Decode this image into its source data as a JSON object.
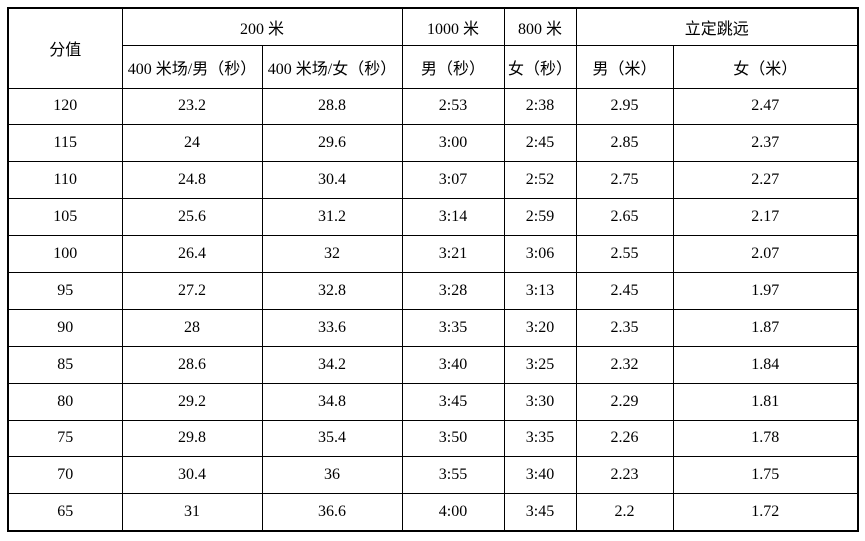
{
  "table": {
    "header": {
      "score": "分值",
      "event_200m": "200 米",
      "event_1000m": "1000 米",
      "event_800m": "800 米",
      "event_jump": "立定跳远",
      "sub_200m_male": "400 米场/男（秒）",
      "sub_200m_female": "400 米场/女（秒）",
      "sub_1000m_male": "男（秒）",
      "sub_800m_female": "女（秒）",
      "sub_jump_male": "男（米）",
      "sub_jump_female": "女（米）"
    },
    "rows": [
      [
        "120",
        "23.2",
        "28.8",
        "2:53",
        "2:38",
        "2.95",
        "2.47"
      ],
      [
        "115",
        "24",
        "29.6",
        "3:00",
        "2:45",
        "2.85",
        "2.37"
      ],
      [
        "110",
        "24.8",
        "30.4",
        "3:07",
        "2:52",
        "2.75",
        "2.27"
      ],
      [
        "105",
        "25.6",
        "31.2",
        "3:14",
        "2:59",
        "2.65",
        "2.17"
      ],
      [
        "100",
        "26.4",
        "32",
        "3:21",
        "3:06",
        "2.55",
        "2.07"
      ],
      [
        "95",
        "27.2",
        "32.8",
        "3:28",
        "3:13",
        "2.45",
        "1.97"
      ],
      [
        "90",
        "28",
        "33.6",
        "3:35",
        "3:20",
        "2.35",
        "1.87"
      ],
      [
        "85",
        "28.6",
        "34.2",
        "3:40",
        "3:25",
        "2.32",
        "1.84"
      ],
      [
        "80",
        "29.2",
        "34.8",
        "3:45",
        "3:30",
        "2.29",
        "1.81"
      ],
      [
        "75",
        "29.8",
        "35.4",
        "3:50",
        "3:35",
        "2.26",
        "1.78"
      ],
      [
        "70",
        "30.4",
        "36",
        "3:55",
        "3:40",
        "2.23",
        "1.75"
      ],
      [
        "65",
        "31",
        "36.6",
        "4:00",
        "3:45",
        "2.2",
        "1.72"
      ]
    ],
    "colors": {
      "border": "#000000",
      "text": "#000000",
      "background": "#ffffff"
    }
  }
}
